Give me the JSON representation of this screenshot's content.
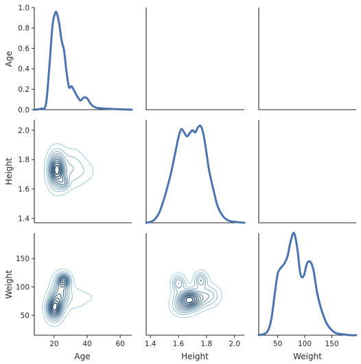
{
  "colors": {
    "line": "#4c72b0",
    "contour_light": "#a6cfe0",
    "contour_dark": "#173b5e",
    "axis": "#262626"
  },
  "chart_data": {
    "type": "pairgrid-kde",
    "variables": [
      "Age",
      "Height",
      "Weight"
    ],
    "ranges": {
      "Age": [
        8,
        67
      ],
      "Height": [
        1.37,
        2.07
      ],
      "Weight": [
        15,
        195
      ]
    },
    "density_ylim": [
      0,
      1.0
    ],
    "ticks": {
      "Age": [
        "20",
        "40",
        "60"
      ],
      "Height": [
        "1.4",
        "1.6",
        "1.8",
        "2.0"
      ],
      "Weight": [
        "50",
        "100",
        "150"
      ],
      "density": [
        "0.0",
        "0.2",
        "0.4",
        "0.6",
        "0.8",
        "1.0"
      ]
    },
    "tick_values": {
      "Age": [
        20,
        40,
        60
      ],
      "Height": [
        1.4,
        1.6,
        1.8,
        2.0
      ],
      "Weight": [
        50,
        100,
        150
      ],
      "density": [
        0.0,
        0.2,
        0.4,
        0.6,
        0.8,
        1.0
      ]
    },
    "diagonal": [
      {
        "variable": "Age",
        "x": [
          8,
          12,
          15,
          17,
          19,
          20.5,
          21.5,
          23,
          24.5,
          26,
          27.5,
          29,
          30.5,
          32,
          34,
          36,
          38,
          40,
          42,
          44,
          47,
          52,
          58,
          67
        ],
        "y": [
          0.0,
          0.01,
          0.05,
          0.4,
          0.82,
          0.94,
          0.95,
          0.85,
          0.68,
          0.58,
          0.37,
          0.22,
          0.23,
          0.19,
          0.13,
          0.09,
          0.12,
          0.11,
          0.06,
          0.03,
          0.015,
          0.01,
          0.005,
          0.0
        ]
      },
      {
        "variable": "Height",
        "x": [
          1.37,
          1.42,
          1.46,
          1.49,
          1.52,
          1.55,
          1.58,
          1.6,
          1.62,
          1.64,
          1.66,
          1.68,
          1.7,
          1.72,
          1.74,
          1.76,
          1.78,
          1.8,
          1.82,
          1.85,
          1.88,
          1.92,
          1.96,
          2.0,
          2.07
        ],
        "y": [
          0.0,
          0.02,
          0.09,
          0.2,
          0.34,
          0.5,
          0.7,
          0.83,
          0.91,
          0.88,
          0.84,
          0.87,
          0.9,
          0.88,
          0.93,
          0.94,
          0.85,
          0.68,
          0.5,
          0.32,
          0.16,
          0.06,
          0.02,
          0.01,
          0.0
        ]
      },
      {
        "variable": "Weight",
        "x": [
          15,
          30,
          38,
          44,
          50,
          56,
          62,
          68,
          74,
          80,
          86,
          92,
          98,
          104,
          110,
          116,
          122,
          128,
          134,
          140,
          148,
          158,
          170,
          185,
          195
        ],
        "y": [
          0.0,
          0.03,
          0.15,
          0.38,
          0.6,
          0.66,
          0.7,
          0.77,
          0.92,
          1.0,
          0.86,
          0.6,
          0.58,
          0.7,
          0.72,
          0.64,
          0.44,
          0.3,
          0.2,
          0.12,
          0.06,
          0.02,
          0.01,
          0.0,
          0.0
        ]
      }
    ],
    "lower_kde": [
      {
        "x_var": "Age",
        "y_var": "Height",
        "modes": [
          {
            "cx": 21.5,
            "cy": 1.73,
            "sx": 3.2,
            "sy": 0.075,
            "w": 1.0
          },
          {
            "cx": 26.0,
            "cy": 1.64,
            "sx": 2.0,
            "sy": 0.03,
            "w": 0.35
          },
          {
            "cx": 31.0,
            "cy": 1.74,
            "sx": 5.0,
            "sy": 0.08,
            "w": 0.25
          },
          {
            "cx": 40.0,
            "cy": 1.72,
            "sx": 4.0,
            "sy": 0.05,
            "w": 0.08
          }
        ]
      },
      {
        "x_var": "Age",
        "y_var": "Weight",
        "modes": [
          {
            "cx": 20.0,
            "cy": 63,
            "sx": 3.0,
            "sy": 14,
            "w": 1.0
          },
          {
            "cx": 24.0,
            "cy": 90,
            "sx": 3.5,
            "sy": 18,
            "w": 0.6
          },
          {
            "cx": 26.0,
            "cy": 112,
            "sx": 2.5,
            "sy": 8,
            "w": 0.7
          },
          {
            "cx": 34.0,
            "cy": 80,
            "sx": 5.0,
            "sy": 14,
            "w": 0.12
          },
          {
            "cx": 41.0,
            "cy": 82,
            "sx": 2.0,
            "sy": 5,
            "w": 0.06
          }
        ]
      },
      {
        "x_var": "Height",
        "y_var": "Weight",
        "modes": [
          {
            "cx": 1.68,
            "cy": 78,
            "sx": 0.06,
            "sy": 11,
            "w": 1.0
          },
          {
            "cx": 1.6,
            "cy": 107,
            "sx": 0.03,
            "sy": 9,
            "w": 0.45
          },
          {
            "cx": 1.76,
            "cy": 112,
            "sx": 0.03,
            "sy": 9,
            "w": 0.45
          },
          {
            "cx": 1.82,
            "cy": 85,
            "sx": 0.05,
            "sy": 12,
            "w": 0.3
          },
          {
            "cx": 1.63,
            "cy": 62,
            "sx": 0.05,
            "sy": 9,
            "w": 0.25
          }
        ]
      }
    ],
    "contour_levels": 10
  }
}
